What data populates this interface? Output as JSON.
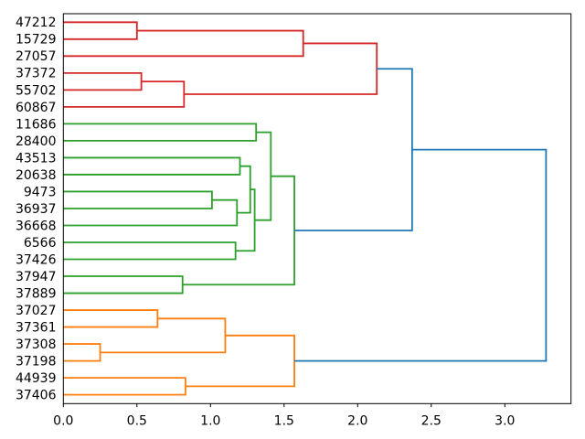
{
  "chart_data": {
    "type": "dendrogram",
    "title": "",
    "xlabel": "",
    "ylabel": "",
    "orientation": "leaves-left-root-right",
    "grid": false,
    "legend": null,
    "xlim": [
      0.0,
      3.44
    ],
    "x_tick_values": [
      0.0,
      0.5,
      1.0,
      1.5,
      2.0,
      2.5,
      3.0
    ],
    "x_tick_labels": [
      "0.0",
      "0.5",
      "1.0",
      "1.5",
      "2.0",
      "2.5",
      "3.0"
    ],
    "leaf_labels": [
      "47212",
      "15729",
      "27057",
      "37372",
      "55702",
      "60867",
      "11686",
      "28400",
      "43513",
      "20638",
      "9473",
      "36937",
      "36668",
      "6566",
      "37426",
      "37947",
      "37889",
      "37027",
      "37361",
      "37308",
      "37198",
      "44939",
      "37406"
    ],
    "colors": {
      "above_threshold_link": "#1f77b4",
      "cluster_top": "#d62728",
      "cluster_middle": "#2ca02c",
      "cluster_bottom": "#ff7f0e",
      "text": "#000000",
      "background": "#ffffff",
      "frame": "#000000"
    },
    "tree": {
      "h": 3.28,
      "color": "#1f77b4",
      "children": [
        {
          "h": 2.37,
          "color": "#1f77b4",
          "children": [
            {
              "h": 2.13,
              "color": "#d62728",
              "children": [
                {
                  "h": 1.63,
                  "color": "#d62728",
                  "children": [
                    {
                      "h": 0.5,
                      "color": "#d62728",
                      "children": [
                        {
                          "leaf": "47212"
                        },
                        {
                          "leaf": "15729"
                        }
                      ]
                    },
                    {
                      "leaf": "27057"
                    }
                  ]
                },
                {
                  "h": 0.82,
                  "color": "#d62728",
                  "children": [
                    {
                      "h": 0.53,
                      "color": "#d62728",
                      "children": [
                        {
                          "leaf": "37372"
                        },
                        {
                          "leaf": "55702"
                        }
                      ]
                    },
                    {
                      "leaf": "60867"
                    }
                  ]
                }
              ]
            },
            {
              "h": 1.57,
              "color": "#2ca02c",
              "children": [
                {
                  "h": 1.41,
                  "color": "#2ca02c",
                  "children": [
                    {
                      "h": 1.31,
                      "color": "#2ca02c",
                      "children": [
                        {
                          "leaf": "11686"
                        },
                        {
                          "leaf": "28400"
                        }
                      ]
                    },
                    {
                      "h": 1.3,
                      "color": "#2ca02c",
                      "children": [
                        {
                          "h": 1.27,
                          "color": "#2ca02c",
                          "children": [
                            {
                              "h": 1.2,
                              "color": "#2ca02c",
                              "children": [
                                {
                                  "leaf": "43513"
                                },
                                {
                                  "leaf": "20638"
                                }
                              ]
                            },
                            {
                              "h": 1.18,
                              "color": "#2ca02c",
                              "children": [
                                {
                                  "h": 1.01,
                                  "color": "#2ca02c",
                                  "children": [
                                    {
                                      "leaf": "9473"
                                    },
                                    {
                                      "leaf": "36937"
                                    }
                                  ]
                                },
                                {
                                  "leaf": "36668"
                                }
                              ]
                            }
                          ]
                        },
                        {
                          "h": 1.17,
                          "color": "#2ca02c",
                          "children": [
                            {
                              "leaf": "6566"
                            },
                            {
                              "leaf": "37426"
                            }
                          ]
                        }
                      ]
                    }
                  ]
                },
                {
                  "h": 0.81,
                  "color": "#2ca02c",
                  "children": [
                    {
                      "leaf": "37947"
                    },
                    {
                      "leaf": "37889"
                    }
                  ]
                }
              ]
            }
          ]
        },
        {
          "h": 1.57,
          "color": "#ff7f0e",
          "children": [
            {
              "h": 1.1,
              "color": "#ff7f0e",
              "children": [
                {
                  "h": 0.64,
                  "color": "#ff7f0e",
                  "children": [
                    {
                      "leaf": "37027"
                    },
                    {
                      "leaf": "37361"
                    }
                  ]
                },
                {
                  "h": 0.25,
                  "color": "#ff7f0e",
                  "children": [
                    {
                      "leaf": "37308"
                    },
                    {
                      "leaf": "37198"
                    }
                  ]
                }
              ]
            },
            {
              "h": 0.83,
              "color": "#ff7f0e",
              "children": [
                {
                  "leaf": "44939"
                },
                {
                  "leaf": "37406"
                }
              ]
            }
          ]
        }
      ]
    }
  }
}
